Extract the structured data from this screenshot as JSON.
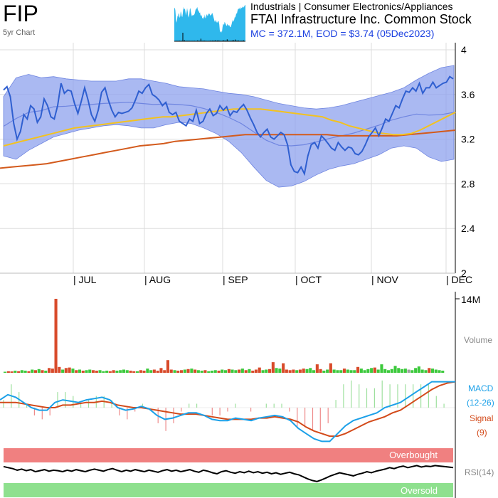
{
  "header": {
    "ticker": "FIP",
    "chart_label": "5yr Chart",
    "sector": "Industrials | Consumer Electronics/Appliances",
    "company": "FTAI Infrastructure Inc. Common Stock",
    "market_info": "MC = 372.1M, EOD = $3.74 (05Dec2023)"
  },
  "colors": {
    "price_line": "#2f5fd0",
    "band_fill": "#8ea2ee",
    "ma_short": "#f3c21f",
    "ma_long": "#d35a1c",
    "macd": "#1ba0e8",
    "signal": "#d34a1a",
    "overbought": "#f08080",
    "oversold": "#8ee08e",
    "volume_up": "#3cc93c",
    "volume_down": "#d84a2a",
    "volume_neutral": "#a0a0a0"
  },
  "chart_data": [
    {
      "type": "line",
      "name": "price",
      "x_months": [
        "| JUL",
        "| AUG",
        "| SEP",
        "| OCT",
        "| NOV",
        "| DEC"
      ],
      "y_ticks": [
        "4",
        "3.6",
        "3.2",
        "2.8",
        "2.4",
        "2"
      ],
      "ylim": [
        2,
        4
      ],
      "grid": true,
      "price": [
        3.64,
        3.67,
        3.58,
        3.34,
        3.2,
        3.27,
        3.42,
        3.38,
        3.5,
        3.47,
        3.35,
        3.4,
        3.56,
        3.5,
        3.4,
        3.38,
        3.5,
        3.7,
        3.61,
        3.64,
        3.63,
        3.52,
        3.43,
        3.54,
        3.66,
        3.55,
        3.42,
        3.36,
        3.46,
        3.62,
        3.66,
        3.55,
        3.46,
        3.4,
        3.44,
        3.43,
        3.44,
        3.45,
        3.48,
        3.55,
        3.63,
        3.61,
        3.66,
        3.69,
        3.6,
        3.58,
        3.55,
        3.5,
        3.53,
        3.44,
        3.42,
        3.44,
        3.36,
        3.34,
        3.32,
        3.38,
        3.36,
        3.46,
        3.34,
        3.36,
        3.43,
        3.47,
        3.41,
        3.43,
        3.5,
        3.46,
        3.49,
        3.41,
        3.45,
        3.44,
        3.48,
        3.51,
        3.46,
        3.39,
        3.33,
        3.26,
        3.22,
        3.26,
        3.29,
        3.22,
        3.2,
        3.23,
        3.26,
        3.24,
        3.15,
        2.97,
        2.91,
        2.9,
        2.95,
        2.89,
        3.05,
        3.15,
        3.17,
        3.12,
        3.23,
        3.2,
        3.16,
        3.12,
        3.1,
        3.17,
        3.13,
        3.1,
        3.13,
        3.12,
        3.07,
        3.06,
        3.09,
        3.15,
        3.22,
        3.26,
        3.3,
        3.23,
        3.3,
        3.38,
        3.36,
        3.43,
        3.5,
        3.48,
        3.56,
        3.63,
        3.62,
        3.66,
        3.63,
        3.7,
        3.61,
        3.66,
        3.66,
        3.71,
        3.66,
        3.68,
        3.7,
        3.71,
        3.76,
        3.74
      ],
      "ma_short": [
        3.14,
        3.16,
        3.18,
        3.2,
        3.22,
        3.24,
        3.26,
        3.28,
        3.3,
        3.31,
        3.32,
        3.33,
        3.34,
        3.35,
        3.36,
        3.37,
        3.38,
        3.39,
        3.4,
        3.4,
        3.41,
        3.42,
        3.43,
        3.44,
        3.45,
        3.46,
        3.47,
        3.47,
        3.47,
        3.47,
        3.46,
        3.45,
        3.44,
        3.43,
        3.42,
        3.41,
        3.4,
        3.37,
        3.35,
        3.32,
        3.3,
        3.28,
        3.26,
        3.25,
        3.24,
        3.24,
        3.25,
        3.28,
        3.32,
        3.36,
        3.4,
        3.44
      ],
      "ma_long": [
        2.94,
        2.95,
        2.96,
        2.97,
        2.98,
        3.0,
        3.02,
        3.04,
        3.06,
        3.08,
        3.1,
        3.12,
        3.14,
        3.15,
        3.16,
        3.18,
        3.19,
        3.2,
        3.21,
        3.22,
        3.23,
        3.24,
        3.24,
        3.24,
        3.24,
        3.24,
        3.24,
        3.24,
        3.24,
        3.23,
        3.23,
        3.23,
        3.23,
        3.23,
        3.23,
        3.24,
        3.25,
        3.26,
        3.27,
        3.28
      ],
      "band_upper": [
        3.58,
        3.75,
        3.78,
        3.75,
        3.76,
        3.74,
        3.73,
        3.72,
        3.72,
        3.72,
        3.74,
        3.74,
        3.72,
        3.7,
        3.67,
        3.66,
        3.65,
        3.63,
        3.61,
        3.6,
        3.58,
        3.55,
        3.52,
        3.5,
        3.48,
        3.47,
        3.48,
        3.5,
        3.53,
        3.56,
        3.59,
        3.62,
        3.66,
        3.73,
        3.79,
        3.84,
        3.86
      ],
      "band_lower": [
        3.05,
        3.02,
        3.1,
        3.16,
        3.22,
        3.25,
        3.28,
        3.3,
        3.32,
        3.33,
        3.32,
        3.3,
        3.3,
        3.33,
        3.35,
        3.34,
        3.3,
        3.25,
        3.18,
        3.08,
        2.95,
        2.83,
        2.77,
        2.78,
        2.82,
        2.88,
        2.93,
        2.96,
        2.98,
        3.02,
        3.06,
        3.12,
        3.14,
        3.12,
        3.04,
        3.0,
        3.02
      ]
    },
    {
      "type": "bar",
      "name": "volume",
      "y_ticks": [
        "14M"
      ],
      "label": "Volume",
      "values": [
        0.2,
        0.3,
        0.25,
        0.4,
        0.3,
        0.5,
        0.4,
        0.3,
        0.6,
        0.5,
        0.7,
        0.5,
        0.4,
        0.9,
        0.8,
        14,
        1.1,
        0.6,
        0.9,
        1.0,
        0.8,
        0.5,
        0.6,
        0.4,
        0.5,
        0.6,
        0.5,
        0.4,
        0.5,
        0.3,
        0.4,
        0.3,
        0.5,
        0.4,
        0.5,
        0.6,
        0.5,
        0.4,
        0.3,
        0.3,
        0.5,
        0.4,
        0.8,
        0.5,
        0.6,
        0.4,
        0.9,
        0.5,
        2.4,
        0.6,
        0.5,
        0.4,
        0.5,
        0.6,
        0.7,
        0.8,
        0.6,
        0.5,
        0.4,
        0.5,
        0.3,
        0.4,
        0.5,
        0.4,
        0.6,
        0.5,
        0.7,
        0.6,
        0.5,
        0.6,
        0.8,
        0.5,
        0.7,
        0.4,
        0.6,
        1.0,
        0.5,
        0.6,
        0.7,
        2.0,
        0.9,
        0.8,
        1.8,
        0.6,
        0.5,
        0.6,
        0.5,
        0.6,
        0.8,
        0.7,
        0.9,
        0.5,
        1.6,
        0.7,
        0.4,
        0.6,
        1.8,
        0.6,
        0.5,
        0.5,
        0.8,
        0.6,
        0.5,
        0.5,
        1.1,
        0.8,
        0.5,
        0.7,
        0.9,
        1.0,
        0.6,
        1.6,
        0.7,
        0.5,
        0.7,
        1.3,
        0.9,
        0.7,
        0.8,
        0.6,
        0.5,
        0.9,
        1.2,
        0.6,
        0.5,
        0.9,
        0.8,
        0.6,
        0.5,
        0.4
      ],
      "direction": [
        "u",
        "d",
        "d",
        "u",
        "d",
        "u",
        "u",
        "d",
        "u",
        "d",
        "u",
        "d",
        "u",
        "d",
        "d",
        "d",
        "d",
        "u",
        "d",
        "d",
        "u",
        "d",
        "u",
        "d",
        "u",
        "u",
        "d",
        "d",
        "u",
        "u",
        "u",
        "d",
        "d",
        "u",
        "u",
        "u",
        "u",
        "d",
        "d",
        "u",
        "d",
        "d",
        "u",
        "u",
        "d",
        "d",
        "d",
        "d",
        "d",
        "d",
        "u",
        "d",
        "d",
        "u",
        "d",
        "u",
        "d",
        "u",
        "u",
        "d",
        "u",
        "u",
        "u",
        "d",
        "u",
        "u",
        "d",
        "u",
        "u",
        "d",
        "u",
        "d",
        "u",
        "d",
        "d",
        "d",
        "u",
        "u",
        "d",
        "d",
        "u",
        "u",
        "d",
        "d",
        "d",
        "d",
        "u",
        "d",
        "d",
        "u",
        "u",
        "u",
        "d",
        "d",
        "u",
        "u",
        "d",
        "u",
        "u",
        "u",
        "d",
        "u",
        "u",
        "u",
        "d",
        "u",
        "u",
        "u",
        "u",
        "d",
        "u",
        "u",
        "u",
        "u",
        "u",
        "u",
        "u",
        "u",
        "u",
        "n",
        "u",
        "u",
        "u",
        "u",
        "u",
        "d",
        "u",
        "u",
        "u",
        "u"
      ]
    },
    {
      "type": "line",
      "name": "macd",
      "labels": {
        "macd": "MACD",
        "macd_params": "(12-26)",
        "signal": "Signal",
        "signal_params": "(9)"
      },
      "macd": [
        0.03,
        0.05,
        0.04,
        0.02,
        0.0,
        -0.01,
        -0.01,
        0.02,
        0.03,
        0.025,
        0.02,
        0.03,
        0.035,
        0.04,
        0.03,
        0.0,
        -0.01,
        -0.005,
        0.005,
        -0.005,
        -0.03,
        -0.045,
        -0.04,
        -0.03,
        -0.02,
        -0.02,
        -0.03,
        -0.045,
        -0.05,
        -0.05,
        -0.04,
        -0.045,
        -0.05,
        -0.04,
        -0.035,
        -0.03,
        -0.035,
        -0.05,
        -0.08,
        -0.1,
        -0.12,
        -0.13,
        -0.13,
        -0.1,
        -0.07,
        -0.05,
        -0.04,
        -0.03,
        -0.02,
        0.0,
        0.01,
        0.02,
        0.04,
        0.06,
        0.08,
        0.1,
        0.1,
        0.1,
        0.1
      ],
      "signal": [
        0.02,
        0.02,
        0.02,
        0.015,
        0.01,
        0.005,
        0.0,
        0.0,
        0.01,
        0.01,
        0.015,
        0.02,
        0.02,
        0.025,
        0.02,
        0.01,
        0.005,
        0.0,
        0.0,
        -0.005,
        -0.01,
        -0.015,
        -0.02,
        -0.025,
        -0.025,
        -0.025,
        -0.03,
        -0.035,
        -0.04,
        -0.045,
        -0.045,
        -0.045,
        -0.045,
        -0.04,
        -0.04,
        -0.035,
        -0.04,
        -0.045,
        -0.055,
        -0.075,
        -0.09,
        -0.1,
        -0.11,
        -0.11,
        -0.1,
        -0.085,
        -0.07,
        -0.055,
        -0.045,
        -0.035,
        -0.02,
        -0.01,
        0.01,
        0.03,
        0.05,
        0.07,
        0.085,
        0.095,
        0.1
      ]
    },
    {
      "type": "line",
      "name": "rsi",
      "label": "RSI(14)",
      "overbought_label": "Overbought",
      "oversold_label": "Oversold",
      "ylim": [
        0,
        100
      ],
      "values": [
        62,
        60,
        58,
        55,
        57,
        54,
        56,
        52,
        54,
        56,
        53,
        55,
        54,
        52,
        55,
        53,
        56,
        54,
        52,
        55,
        57,
        55,
        53,
        56,
        58,
        55,
        52,
        55,
        53,
        56,
        54,
        52,
        55,
        53,
        51,
        54,
        56,
        53,
        55,
        52,
        54,
        56,
        53,
        51,
        55,
        53,
        50,
        48,
        52,
        54,
        51,
        49,
        52,
        50,
        53,
        50,
        52,
        49,
        51,
        48,
        50,
        47,
        49,
        51,
        48,
        46,
        42,
        38,
        35,
        33,
        36,
        40,
        44,
        47,
        50,
        48,
        46,
        44,
        47,
        49,
        52,
        50,
        53,
        55,
        57,
        60,
        58,
        61,
        63,
        60,
        62,
        64,
        61,
        63,
        62,
        64,
        63,
        62,
        61,
        60
      ]
    }
  ]
}
